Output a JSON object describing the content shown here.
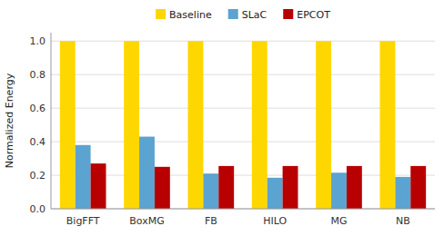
{
  "chart_data": {
    "type": "bar",
    "y_label": "Normalized Energy",
    "categories": [
      "BigFFT",
      "BoxMG",
      "FB",
      "HILO",
      "MG",
      "NB"
    ],
    "series": [
      {
        "name": "Baseline",
        "color": "#FFD700",
        "values": [
          1.0,
          1.0,
          1.0,
          1.0,
          1.0,
          1.0
        ]
      },
      {
        "name": "SLaC",
        "color": "#5BA3D0",
        "values": [
          0.38,
          0.43,
          0.21,
          0.185,
          0.215,
          0.19
        ]
      },
      {
        "name": "EPCOT",
        "color": "#B80000",
        "values": [
          0.27,
          0.25,
          0.255,
          0.255,
          0.255,
          0.255
        ]
      }
    ],
    "ylim": [
      0.0,
      1.05
    ],
    "yticks": [
      {
        "value": 0.0,
        "label": "0.0"
      },
      0.2,
      0.4,
      0.6,
      0.8,
      {
        "value": 1.0,
        "label": "1.0"
      }
    ],
    "grid": true,
    "legend": "top"
  }
}
